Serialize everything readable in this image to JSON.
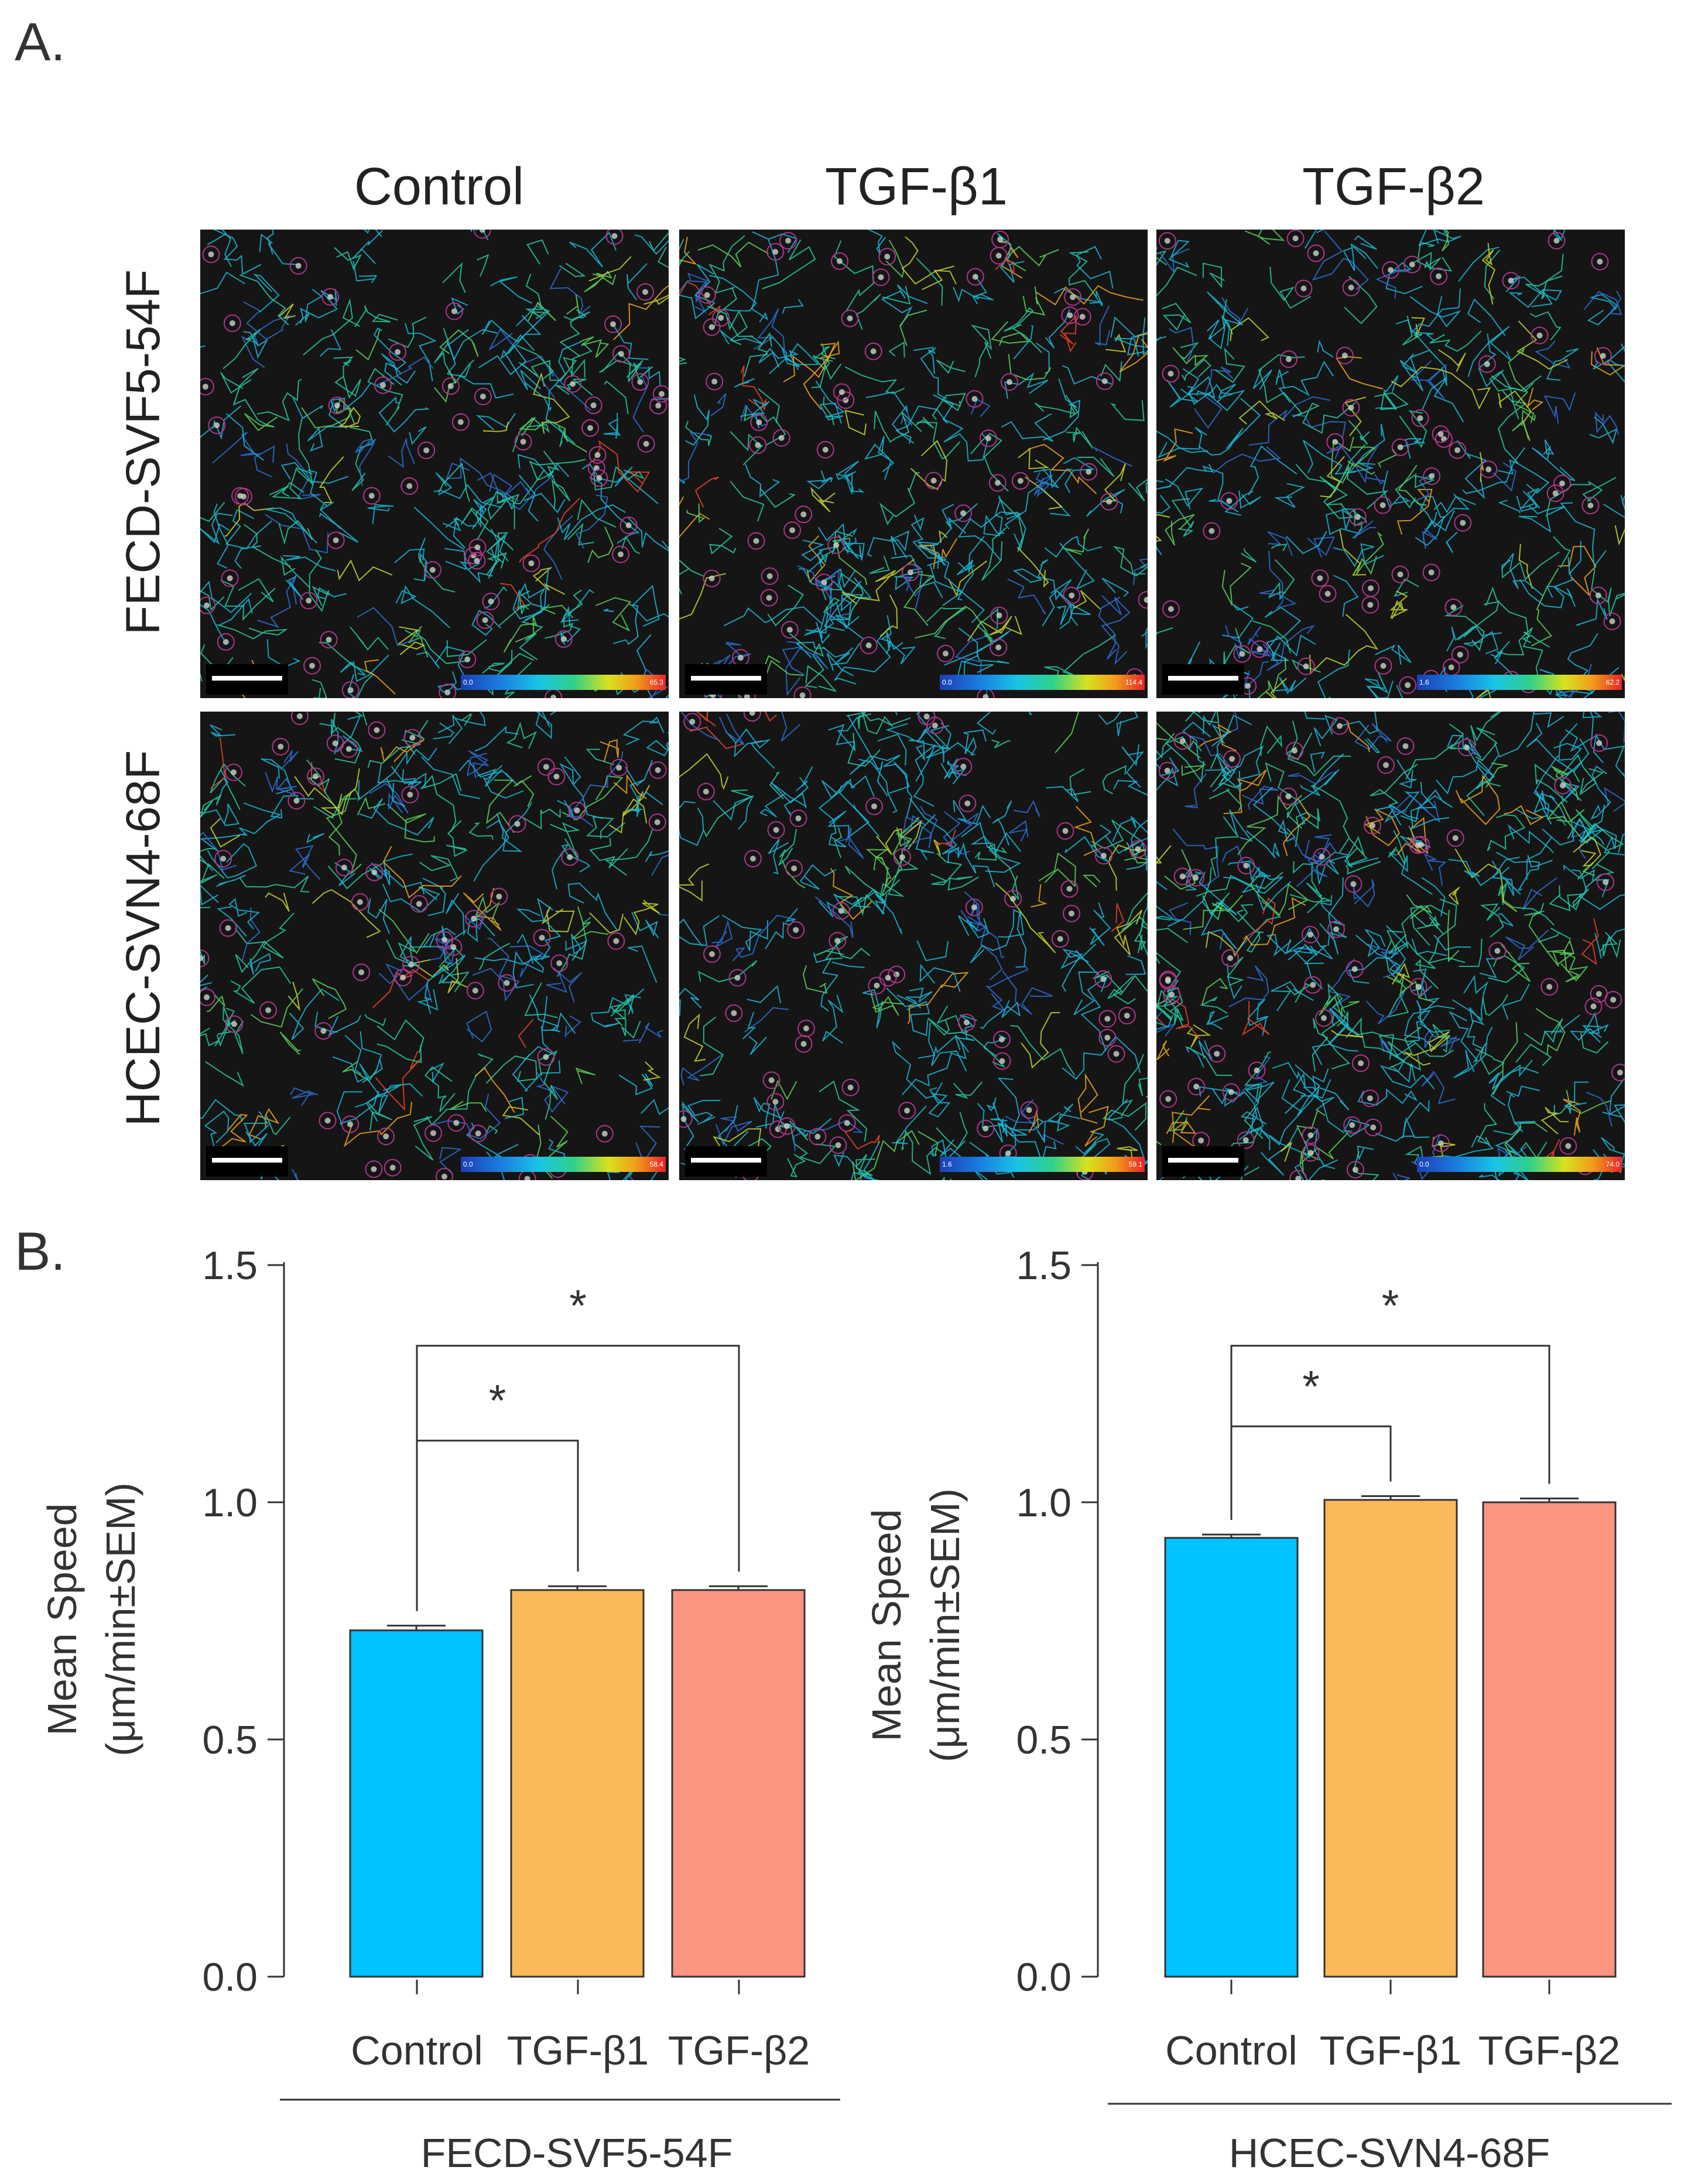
{
  "panel_a": {
    "label": "A.",
    "columns": [
      "Control",
      "TGF-β1",
      "TGF-β2"
    ],
    "rows": [
      "FECD-SVF5-54F",
      "HCEC-SVN4-68F"
    ],
    "colorbars": [
      [
        {
          "min": "0.0",
          "max": "65.3"
        },
        {
          "min": "0.0",
          "max": "114.4"
        },
        {
          "min": "1.6",
          "max": "62.2"
        }
      ],
      [
        {
          "min": "0.0",
          "max": "58.4"
        },
        {
          "min": "1.6",
          "max": "59.1"
        },
        {
          "min": "0.0",
          "max": "74.0"
        }
      ]
    ],
    "colors": {
      "background": "#151515",
      "track_palette": [
        "#2b6fd6",
        "#19b7d8",
        "#26c9a0",
        "#5bd15a",
        "#c8d62a",
        "#f0a41c",
        "#e8432a"
      ],
      "cell_ring": "#b0348c"
    }
  },
  "panel_b": {
    "label": "B."
  },
  "chart_data": [
    {
      "type": "bar",
      "categories": [
        "Control",
        "TGF-β1",
        "TGF-β2"
      ],
      "values": [
        0.73,
        0.815,
        0.815
      ],
      "errors": [
        0.01,
        0.008,
        0.008
      ],
      "colors": [
        "#00c2ff",
        "#fbb95a",
        "#fc9482"
      ],
      "ylabel_line1": "Mean Speed",
      "ylabel_line2": "(μm/min±SEM)",
      "yticks": [
        "0.0",
        "0.5",
        "1.0",
        "1.5"
      ],
      "ylim": [
        0,
        1.5
      ],
      "group_label": "FECD-SVF5-54F",
      "significance": [
        {
          "from": "Control",
          "to": "TGF-β1",
          "label": "*",
          "y": 1.13
        },
        {
          "from": "Control",
          "to": "TGF-β2",
          "label": "*",
          "y": 1.33
        }
      ]
    },
    {
      "type": "bar",
      "categories": [
        "Control",
        "TGF-β1",
        "TGF-β2"
      ],
      "values": [
        0.925,
        1.005,
        1.0
      ],
      "errors": [
        0.007,
        0.008,
        0.008
      ],
      "colors": [
        "#00c2ff",
        "#fbb95a",
        "#fc9482"
      ],
      "ylabel_line1": "Mean Speed",
      "ylabel_line2": "(μm/min±SEM)",
      "yticks": [
        "0.0",
        "0.5",
        "1.0",
        "1.5"
      ],
      "ylim": [
        0,
        1.5
      ],
      "group_label": "HCEC-SVN4-68F",
      "significance": [
        {
          "from": "Control",
          "to": "TGF-β1",
          "label": "*",
          "y": 1.16
        },
        {
          "from": "Control",
          "to": "TGF-β2",
          "label": "*",
          "y": 1.33
        }
      ]
    }
  ]
}
